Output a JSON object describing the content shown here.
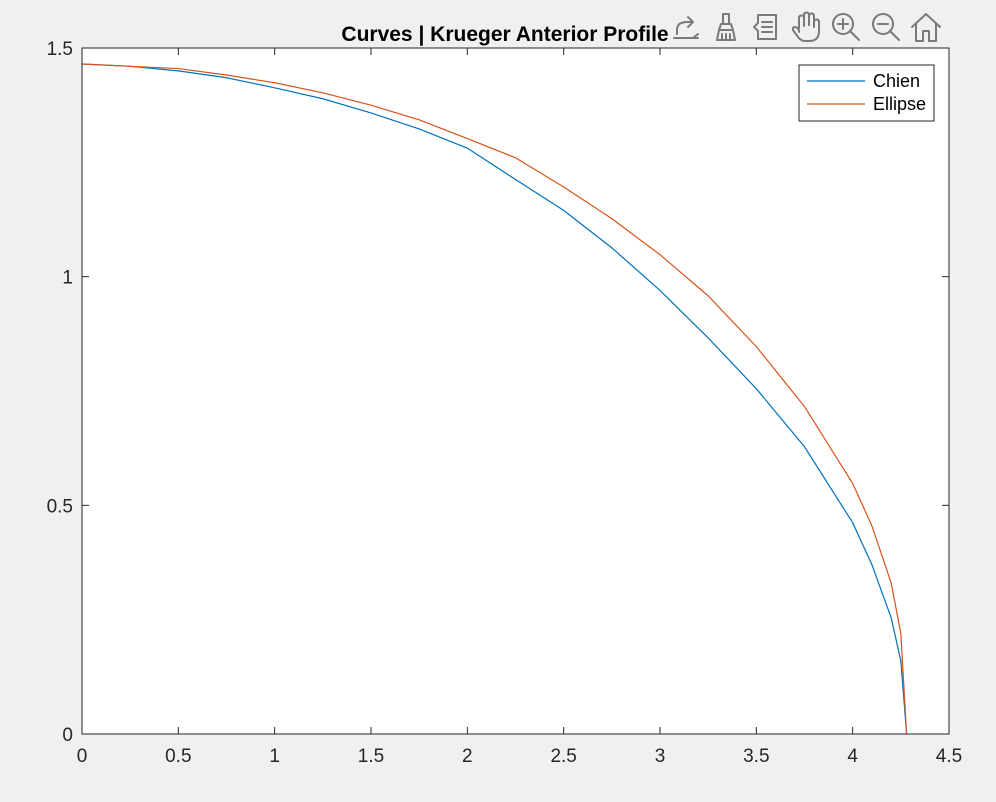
{
  "figure": {
    "title": "Curves | Krueger Anterior Profile",
    "background": "#f0f0f0",
    "axes_background": "#ffffff"
  },
  "toolbar": {
    "buttons": [
      {
        "name": "export-button",
        "icon": "export-icon"
      },
      {
        "name": "brush-button",
        "icon": "brush-icon"
      },
      {
        "name": "datatip-button",
        "icon": "datatip-icon"
      },
      {
        "name": "pan-button",
        "icon": "hand-icon"
      },
      {
        "name": "zoom-in-button",
        "icon": "zoom-in-icon"
      },
      {
        "name": "zoom-out-button",
        "icon": "zoom-out-icon"
      },
      {
        "name": "home-button",
        "icon": "home-icon"
      }
    ]
  },
  "chart_data": {
    "type": "line",
    "title": "Curves | Krueger Anterior Profile",
    "xlabel": "",
    "ylabel": "",
    "xlim": [
      0,
      4.5
    ],
    "ylim": [
      0,
      1.5
    ],
    "xticks": [
      0,
      0.5,
      1,
      1.5,
      2,
      2.5,
      3,
      3.5,
      4,
      4.5
    ],
    "xtick_labels": [
      "0",
      "0.5",
      "1",
      "1.5",
      "2",
      "2.5",
      "3",
      "3.5",
      "4",
      "4.5"
    ],
    "yticks": [
      0,
      0.5,
      1,
      1.5
    ],
    "ytick_labels": [
      "0",
      "0.5",
      "1",
      "1.5"
    ],
    "grid": false,
    "legend_position": "top-right",
    "series": [
      {
        "name": "Chien",
        "color": "#0072bd",
        "x": [
          0,
          0.25,
          0.5,
          0.75,
          1.0,
          1.25,
          1.5,
          1.75,
          2.0,
          2.25,
          2.5,
          2.75,
          3.0,
          3.25,
          3.5,
          3.75,
          4.0,
          4.1,
          4.2,
          4.25,
          4.28
        ],
        "y": [
          1.465,
          1.46,
          1.45,
          1.435,
          1.413,
          1.389,
          1.358,
          1.323,
          1.281,
          1.2125,
          1.145,
          1.063,
          0.97,
          0.866,
          0.755,
          0.628,
          0.462,
          0.37,
          0.254,
          0.16,
          0.0
        ]
      },
      {
        "name": "Ellipse",
        "color": "#d95319",
        "x": [
          0,
          0.25,
          0.5,
          0.75,
          1.0,
          1.25,
          1.5,
          1.75,
          2.0,
          2.25,
          2.5,
          2.75,
          3.0,
          3.25,
          3.5,
          3.75,
          4.0,
          4.1,
          4.2,
          4.25,
          4.28
        ],
        "y": [
          1.465,
          1.46,
          1.455,
          1.441,
          1.424,
          1.402,
          1.375,
          1.343,
          1.302,
          1.26,
          1.196,
          1.127,
          1.048,
          0.958,
          0.847,
          0.716,
          0.548,
          0.455,
          0.33,
          0.22,
          0.0
        ]
      }
    ]
  }
}
